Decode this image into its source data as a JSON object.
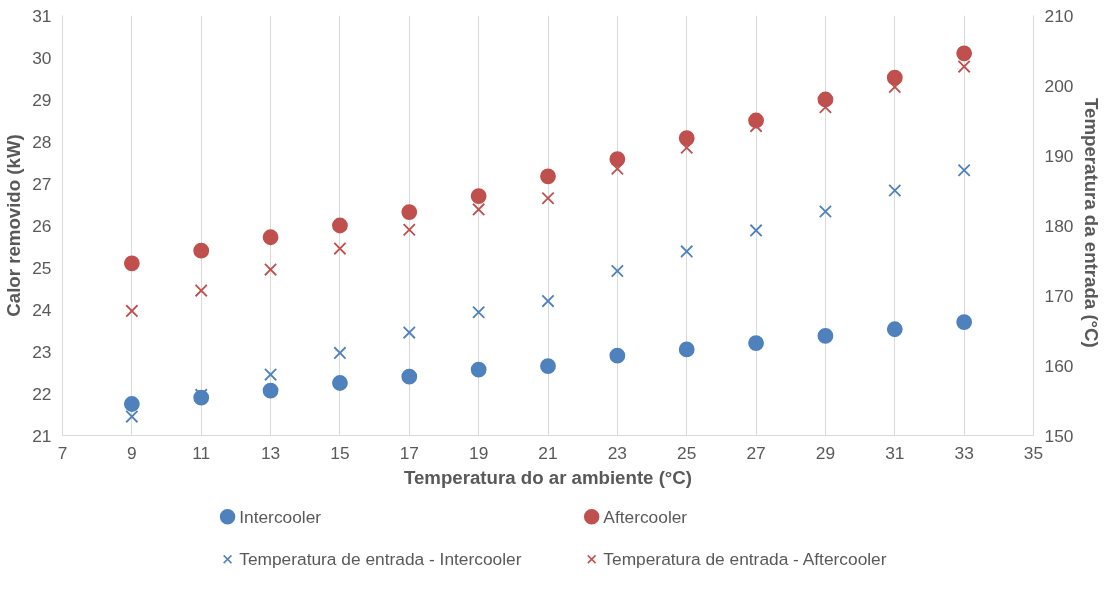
{
  "chart_data": {
    "type": "scatter",
    "xlabel": "Temperatura do ar ambiente (°C)",
    "ylabel": "Calor removido (kW)",
    "y2label": "Temperatura  da entrada (°C)",
    "x": [
      9,
      11,
      13,
      15,
      17,
      19,
      21,
      23,
      25,
      27,
      29,
      31,
      33
    ],
    "xlim": [
      7,
      35
    ],
    "xticks": [
      7,
      9,
      11,
      13,
      15,
      17,
      19,
      21,
      23,
      25,
      27,
      29,
      31,
      33,
      35
    ],
    "ylim": [
      21,
      31
    ],
    "yticks": [
      21,
      22,
      23,
      24,
      25,
      26,
      27,
      28,
      29,
      30,
      31
    ],
    "y2lim": [
      150,
      210
    ],
    "y2ticks": [
      150,
      160,
      170,
      180,
      190,
      200,
      210
    ],
    "grid": "x",
    "legend": "bottom",
    "series": [
      {
        "name": "Intercooler",
        "color": "#4f81bd",
        "marker": "circle",
        "values": [
          21.75,
          21.9,
          22.07,
          22.25,
          22.4,
          22.57,
          22.65,
          22.9,
          23.05,
          23.2,
          23.37,
          23.53,
          23.7
        ]
      },
      {
        "name": "Aftercooler",
        "color": "#c0504d",
        "marker": "circle",
        "values": [
          25.1,
          25.4,
          25.72,
          26.0,
          26.32,
          26.7,
          27.17,
          27.58,
          28.08,
          28.5,
          29.0,
          29.52,
          30.1
        ]
      },
      {
        "name": "Temperatura de entrada - Intercooler",
        "color": "#4f81bd",
        "marker": "cross",
        "axis": "y2",
        "values": [
          152.7,
          155.8,
          158.7,
          161.8,
          164.7,
          167.6,
          169.2,
          173.5,
          176.3,
          179.3,
          182,
          185,
          187.9
        ]
      },
      {
        "name": "Temperatura de entrada - Aftercooler",
        "color": "#c0504d",
        "marker": "cross",
        "axis": "y2",
        "values": [
          167.8,
          170.7,
          173.7,
          176.7,
          179.4,
          182.3,
          183.9,
          188.1,
          191.1,
          194.2,
          196.9,
          199.8,
          202.7
        ]
      }
    ]
  }
}
